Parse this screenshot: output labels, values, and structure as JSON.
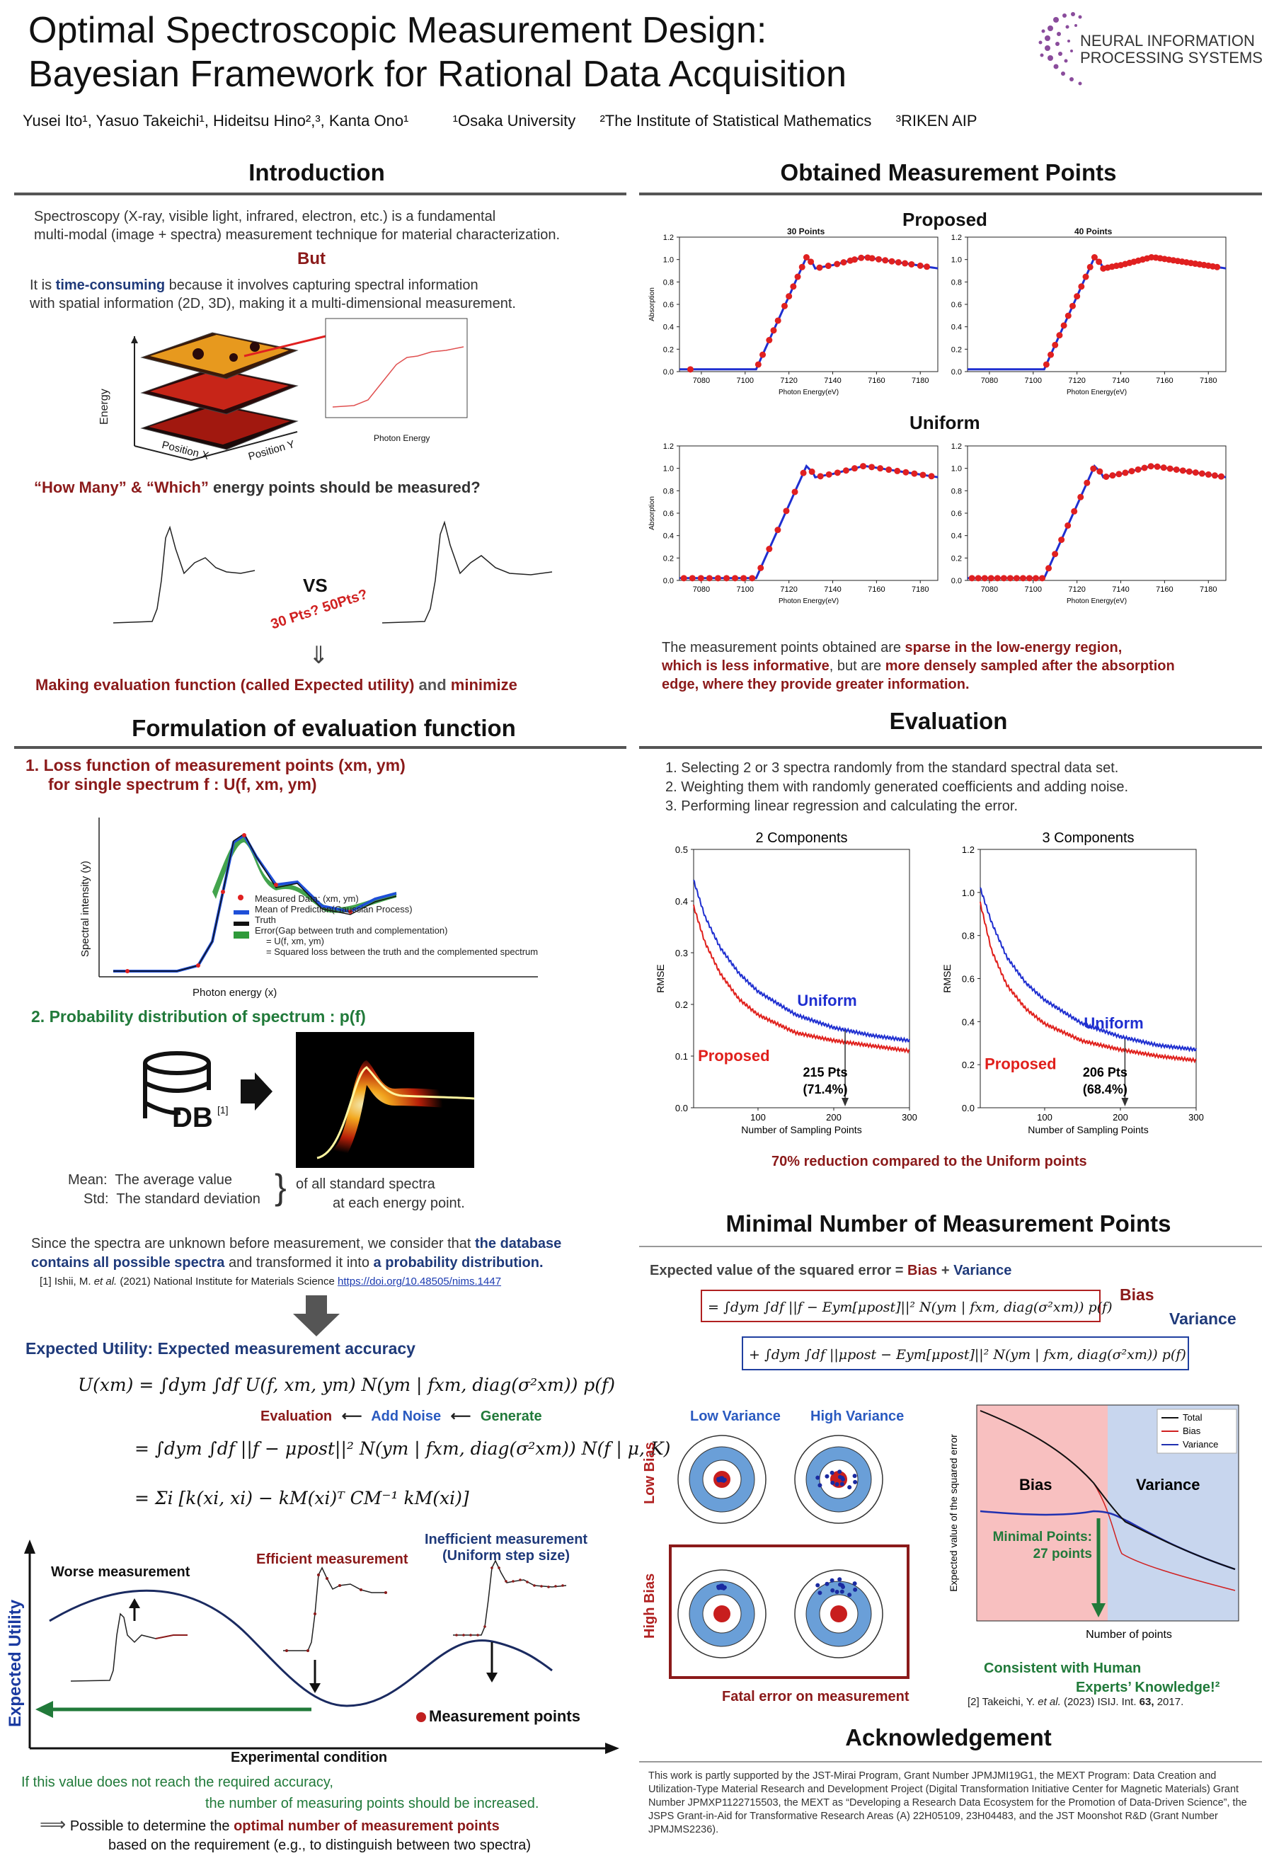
{
  "header": {
    "title_line1": "Optimal Spectroscopic Measurement Design:",
    "title_line2": "Bayesian Framework for Rational Data Acquisition",
    "authors": "Yusei Ito¹, Yasuo Takeichi¹, Hideitsu Hino²,³, Kanta Ono¹",
    "aff1": "¹Osaka University",
    "aff2": "²The Institute of Statistical Mathematics",
    "aff3": "³RIKEN AIP",
    "logo_line1": "NEURAL INFORMATION",
    "logo_line2": "PROCESSING SYSTEMS",
    "logo_color": "#8a4c9c"
  },
  "intro": {
    "title": "Introduction",
    "p1_line1": "Spectroscopy (X-ray, visible light, infrared, electron, etc.) is a fundamental",
    "p1_line2": "multi-modal (image + spectra) measurement technique for material characterization.",
    "but": "But",
    "p2_pre": "It is ",
    "p2_bold": "time-consuming",
    "p2_post": " because it involves capturing spectral information",
    "p2_line2": "with spatial information (2D, 3D), making it a multi-dimensional measurement.",
    "axis_energy": "Energy",
    "axis_posx": "Position X",
    "axis_posy": "Position Y",
    "inset_xlabel": "Photon Energy",
    "question_part1": "“How Many” & “Which”",
    "question_part2": " energy points should be measured?",
    "vs": "VS",
    "pts": "30 Pts? 50Pts?",
    "arrow": "⇓",
    "conclusion_red": "Making evaluation function (called Expected utility)",
    "conclusion_and": " and ",
    "conclusion_min": "minimize"
  },
  "formulation": {
    "title": "Formulation of evaluation function",
    "item1_line1": "1. Loss function of measurement points (xm, ym)",
    "item1_line2": "for single spectrum f : U(f, xm, ym)",
    "legend": [
      "Measured Data: (xm, ym)",
      "Mean of Prediction(Gaussian Process)",
      "Truth",
      "Error(Gap between truth and complementation)",
      "= U(f, xm, ym)",
      "= Squared loss between the truth and the complemented spectrum"
    ],
    "ylabel": "Spectral intensity (y)",
    "xlabel": "Photon energy (x)",
    "item2": "2. Probability distribution of spectrum : p(f)",
    "db_label": "DB",
    "db_ref": "[1]",
    "mean_label": "Mean:",
    "mean_text": "The average value",
    "std_label": "Std:",
    "std_text": "The standard deviation",
    "brace_text1": "of all standard spectra",
    "brace_text2": "at each energy point.",
    "since_line1_pre": "Since the spectra are unknown before measurement,  we consider that ",
    "since_line1_bold": "the database",
    "since_line2_bold": "contains all possible spectra",
    "since_line2_mid": " and transformed it into ",
    "since_line2_bold2": "a probability distribution.",
    "ref1_pre": "[1] Ishii, M. ",
    "ref1_etal": "et al.",
    "ref1_post": " (2021) National Institute for Materials Science ",
    "ref1_link": "https://doi.org/10.48505/nims.1447",
    "eu_title": "Expected Utility: Expected measurement  accuracy",
    "eq1": "U(xm) = ∫dym ∫df U(f, xm, ym) N(ym | fxm, diag(σ²xm)) p(f)",
    "eval_label": "Evaluation",
    "noise_label": "Add Noise",
    "gen_label": "Generate",
    "eq2": "= ∫dym ∫df ||f − μpost||² N(ym | fxm, diag(σ²xm)) N(f | μ, K)",
    "eq3": "= Σi [k(xi, xi) − kM(xi)ᵀ CM⁻¹ kM(xi)]",
    "worse": "Worse measurement",
    "efficient": "Efficient measurement",
    "inefficient1": "Inefficient measurement",
    "inefficient2": "(Uniform step size)",
    "ylabel_eu": "Expected Utility",
    "xlabel_exp": "Experimental condition",
    "mp_legend": "Measurement points",
    "note1": "If this value does not reach the required accuracy,",
    "note2": "the number of measuring points should be increased.",
    "final_pre": "Possible to determine the ",
    "final_bold": "optimal number of measurement points",
    "final_line2": "based on the requirement (e.g., to distinguish between two spectra)"
  },
  "obtained": {
    "title": "Obtained Measurement Points",
    "proposed": "Proposed",
    "uniform": "Uniform",
    "sub30": "30 Points",
    "sub40": "40 Points",
    "ylabel": "Absorption",
    "xlabel": "Photon Energy(eV)",
    "xticks": [
      "7080",
      "7100",
      "7120",
      "7140",
      "7160",
      "7180"
    ],
    "yticks": [
      "0.0",
      "0.2",
      "0.4",
      "0.6",
      "0.8",
      "1.0",
      "1.2"
    ],
    "desc1_pre": "The measurement points obtained are ",
    "desc1_bold": "sparse in the low-energy region,",
    "desc2_bold": "which is less informative",
    "desc2_mid": ", but are ",
    "desc2_bold2": "more densely sampled after the absorption",
    "desc3_bold": "edge, where they provide greater information."
  },
  "evaluation": {
    "title": "Evaluation",
    "step1": "1. Selecting 2 or 3 spectra randomly from the standard spectral data set.",
    "step2": "2. Weighting them with randomly generated coefficients and adding noise.",
    "step3": "3. Performing linear regression and calculating the error.",
    "reduction": "70% reduction compared to the Uniform points"
  },
  "chart_data": [
    {
      "type": "line",
      "title": "2 Components",
      "xlabel": "Number of Sampling Points",
      "ylabel": "RMSE",
      "xlim": [
        15,
        300
      ],
      "ylim": [
        0.0,
        0.5
      ],
      "xticks": [
        100,
        200,
        300
      ],
      "yticks": [
        0.0,
        0.1,
        0.2,
        0.3,
        0.4,
        0.5
      ],
      "series": [
        {
          "name": "Uniform",
          "color": "#1f2fd0",
          "x": [
            15,
            30,
            50,
            75,
            100,
            150,
            200,
            250,
            300
          ],
          "y": [
            0.44,
            0.37,
            0.31,
            0.26,
            0.225,
            0.18,
            0.155,
            0.14,
            0.13
          ]
        },
        {
          "name": "Proposed",
          "color": "#e0201c",
          "x": [
            15,
            30,
            50,
            75,
            100,
            150,
            200,
            250,
            300
          ],
          "y": [
            0.39,
            0.32,
            0.26,
            0.21,
            0.18,
            0.145,
            0.13,
            0.12,
            0.11
          ]
        }
      ],
      "annotation": {
        "x": 215,
        "label": "215 Pts",
        "sub": "(71.4%)"
      }
    },
    {
      "type": "line",
      "title": "3 Components",
      "xlabel": "Number of Sampling Points",
      "ylabel": "RMSE",
      "xlim": [
        15,
        300
      ],
      "ylim": [
        0.0,
        1.2
      ],
      "xticks": [
        100,
        200,
        300
      ],
      "yticks": [
        0.0,
        0.2,
        0.4,
        0.6,
        0.8,
        1.0,
        1.2
      ],
      "series": [
        {
          "name": "Uniform",
          "color": "#1f2fd0",
          "x": [
            15,
            30,
            50,
            75,
            100,
            150,
            200,
            250,
            300
          ],
          "y": [
            1.02,
            0.86,
            0.7,
            0.58,
            0.5,
            0.39,
            0.33,
            0.29,
            0.27
          ]
        },
        {
          "name": "Proposed",
          "color": "#e0201c",
          "x": [
            15,
            30,
            50,
            75,
            100,
            150,
            200,
            250,
            300
          ],
          "y": [
            0.95,
            0.73,
            0.57,
            0.46,
            0.39,
            0.31,
            0.27,
            0.24,
            0.22
          ]
        }
      ],
      "annotation": {
        "x": 206,
        "label": "206 Pts",
        "sub": "(68.4%)"
      }
    },
    {
      "type": "line",
      "title": "",
      "xlabel": "Number of points",
      "ylabel": "Expected value of the squared error",
      "log_scale": true,
      "series": [
        {
          "name": "Total",
          "color": "#111111"
        },
        {
          "name": "Bias",
          "color": "#d02020"
        },
        {
          "name": "Variance",
          "color": "#2030b0"
        }
      ],
      "regions": [
        "Bias",
        "Variance"
      ],
      "annotation": {
        "label": "Minimal Points:",
        "sub": "27 points",
        "x": 27
      }
    }
  ],
  "minimal": {
    "title": "Minimal Number of Measurement Points",
    "lead_pre": "Expected value of the squared error = ",
    "lead_bias": "Bias",
    "lead_plus": " + ",
    "lead_var": "Variance",
    "bias_eq": "= ∫dym ∫df ||f − Eym[μpost]||² N(ym | fxm, diag(σ²xm)) p(f)",
    "var_eq": "+ ∫dym ∫df ||μpost − Eym[μpost]||² N(ym | fxm, diag(σ²xm)) p(f)",
    "bias_label": "Bias",
    "var_label": "Variance",
    "low_var": "Low Variance",
    "high_var": "High Variance",
    "low_bias": "Low Bias",
    "high_bias": "High Bias",
    "fatal": "Fatal error on measurement",
    "consistent1": "Consistent with Human",
    "consistent2": "Experts’ Knowledge!²",
    "ref2_pre": "[2] Takeichi, Y. ",
    "ref2_etal": "et al.",
    "ref2_post": " (2023) ISIJ. Int. ",
    "ref2_vol": "63,",
    "ref2_end": " 2017."
  },
  "ack": {
    "title": "Acknowledgement",
    "text": "This work is partly supported by the JST-Mirai Program, Grant Number JPMJMI19G1, the MEXT Program: Data Creation and Utilization-Type Material Research and Development Project (Digital Transformation Initiative Center for Magnetic Materials) Grant Number JPMXP1122715503, the MEXT as “Developing a Research Data Ecosystem for the Promotion of Data-Driven Science”, the JSPS Grant-in-Aid for Transformative Research Areas (A) 22H05109, 23H04483, and the JST Moonshot R&D (Grant Number JPMJMS2236)."
  }
}
